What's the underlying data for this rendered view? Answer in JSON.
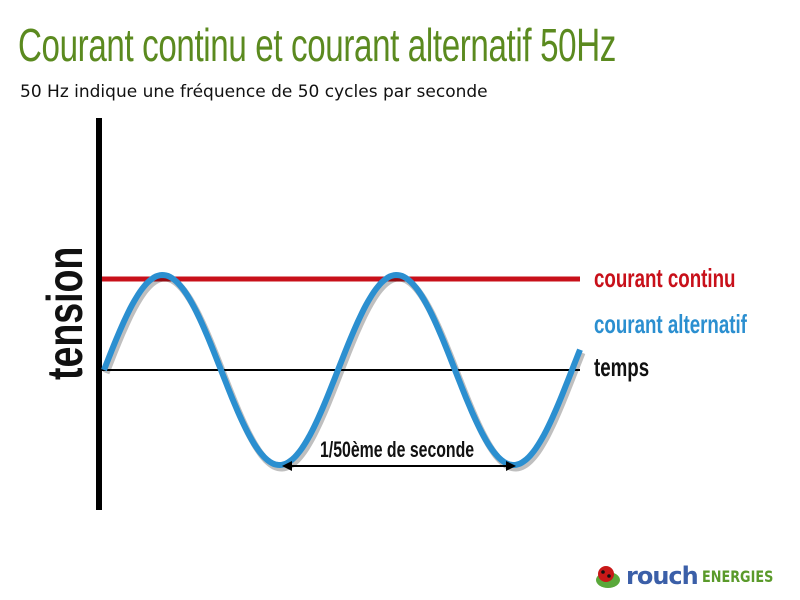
{
  "title": "Courant continu et courant alternatif 50Hz",
  "subtitle": "50 Hz indique une fréquence de 50 cycles par seconde",
  "axis_label": "tension",
  "legend": {
    "dc": {
      "label": "courant continu",
      "color": "#c8101a"
    },
    "ac": {
      "label": "courant alternatif",
      "color": "#2b8fd0"
    },
    "time": {
      "label": "temps",
      "color": "#111111"
    }
  },
  "period_label": "1/50ème de seconde",
  "logo": {
    "text1": "rouch",
    "text2": "ENERGIES",
    "icon": "ladybug-leaf-icon"
  }
}
